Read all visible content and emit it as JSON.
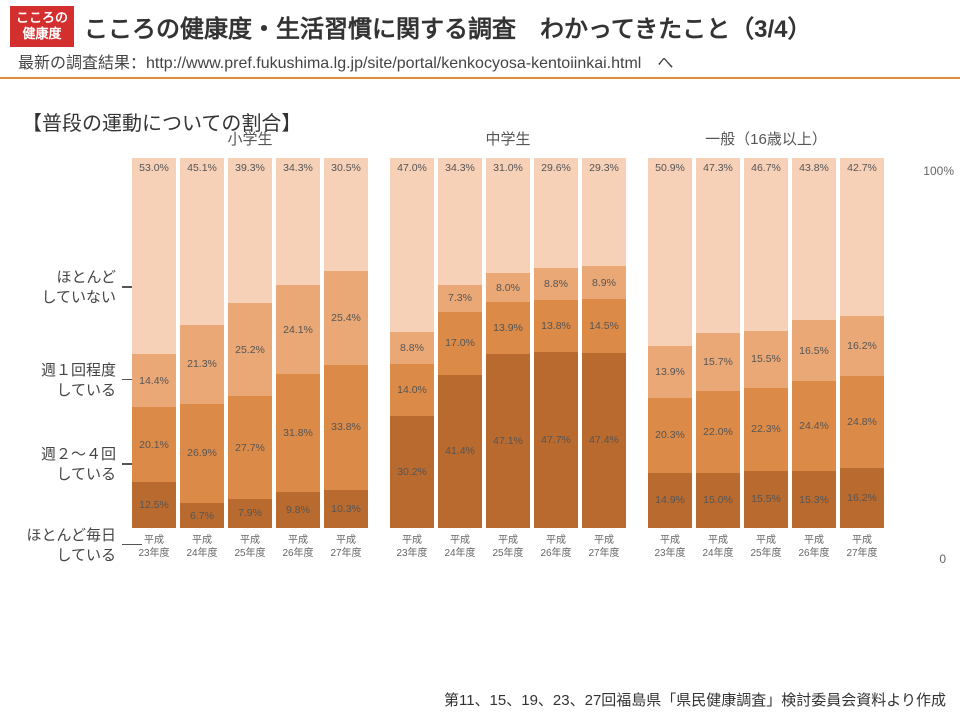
{
  "badge_text": "こころの\n健康度",
  "title": "こころの健康度・生活習慣に関する調査　わかってきたこと（3/4）",
  "subtitle": "最新の調査結果：http://www.pref.fukushima.lg.jp/site/portal/kenkocyosa-kentoiinkai.html　へ",
  "section_title": "【普段の運動についての割合】",
  "y_top": "100%",
  "y_bottom": "0",
  "footer": "第11、15、19、23、27回福島県「県民健康調査」検討委員会資料より作成",
  "colors": {
    "seg4": "#f6d0b7",
    "seg3": "#eaa876",
    "seg2": "#dc8a47",
    "seg1": "#b96a2f",
    "badge": "#d32f2f"
  },
  "legend_items": [
    {
      "label": "ほとんど\nしていない"
    },
    {
      "label": "週１回程度\nしている"
    },
    {
      "label": "週２～４回\nしている"
    },
    {
      "label": "ほとんど毎日\nしている"
    }
  ],
  "x_labels": [
    "平成\n23年度",
    "平成\n24年度",
    "平成\n25年度",
    "平成\n26年度",
    "平成\n27年度"
  ],
  "panels": [
    {
      "title": "小学生",
      "bars": [
        {
          "v": [
            12.5,
            20.1,
            14.4,
            53.0
          ]
        },
        {
          "v": [
            6.7,
            26.9,
            21.3,
            45.1
          ]
        },
        {
          "v": [
            7.9,
            27.7,
            25.2,
            39.3
          ]
        },
        {
          "v": [
            9.8,
            31.8,
            24.1,
            34.3
          ]
        },
        {
          "v": [
            10.3,
            33.8,
            25.4,
            30.5
          ]
        }
      ]
    },
    {
      "title": "中学生",
      "bars": [
        {
          "v": [
            30.2,
            14.0,
            8.8,
            47.0
          ]
        },
        {
          "v": [
            41.4,
            17.0,
            7.3,
            34.3
          ]
        },
        {
          "v": [
            47.1,
            13.9,
            8.0,
            31.0
          ]
        },
        {
          "v": [
            47.7,
            13.8,
            8.8,
            29.6
          ]
        },
        {
          "v": [
            47.4,
            14.5,
            8.9,
            29.3
          ]
        }
      ]
    },
    {
      "title": "一般（16歳以上）",
      "bars": [
        {
          "v": [
            14.9,
            20.3,
            13.9,
            50.9
          ]
        },
        {
          "v": [
            15.0,
            22.0,
            15.7,
            47.3
          ]
        },
        {
          "v": [
            15.5,
            22.3,
            15.5,
            46.7
          ]
        },
        {
          "v": [
            15.3,
            24.4,
            16.5,
            43.8
          ]
        },
        {
          "v": [
            16.2,
            24.8,
            16.2,
            42.7
          ]
        }
      ]
    }
  ]
}
